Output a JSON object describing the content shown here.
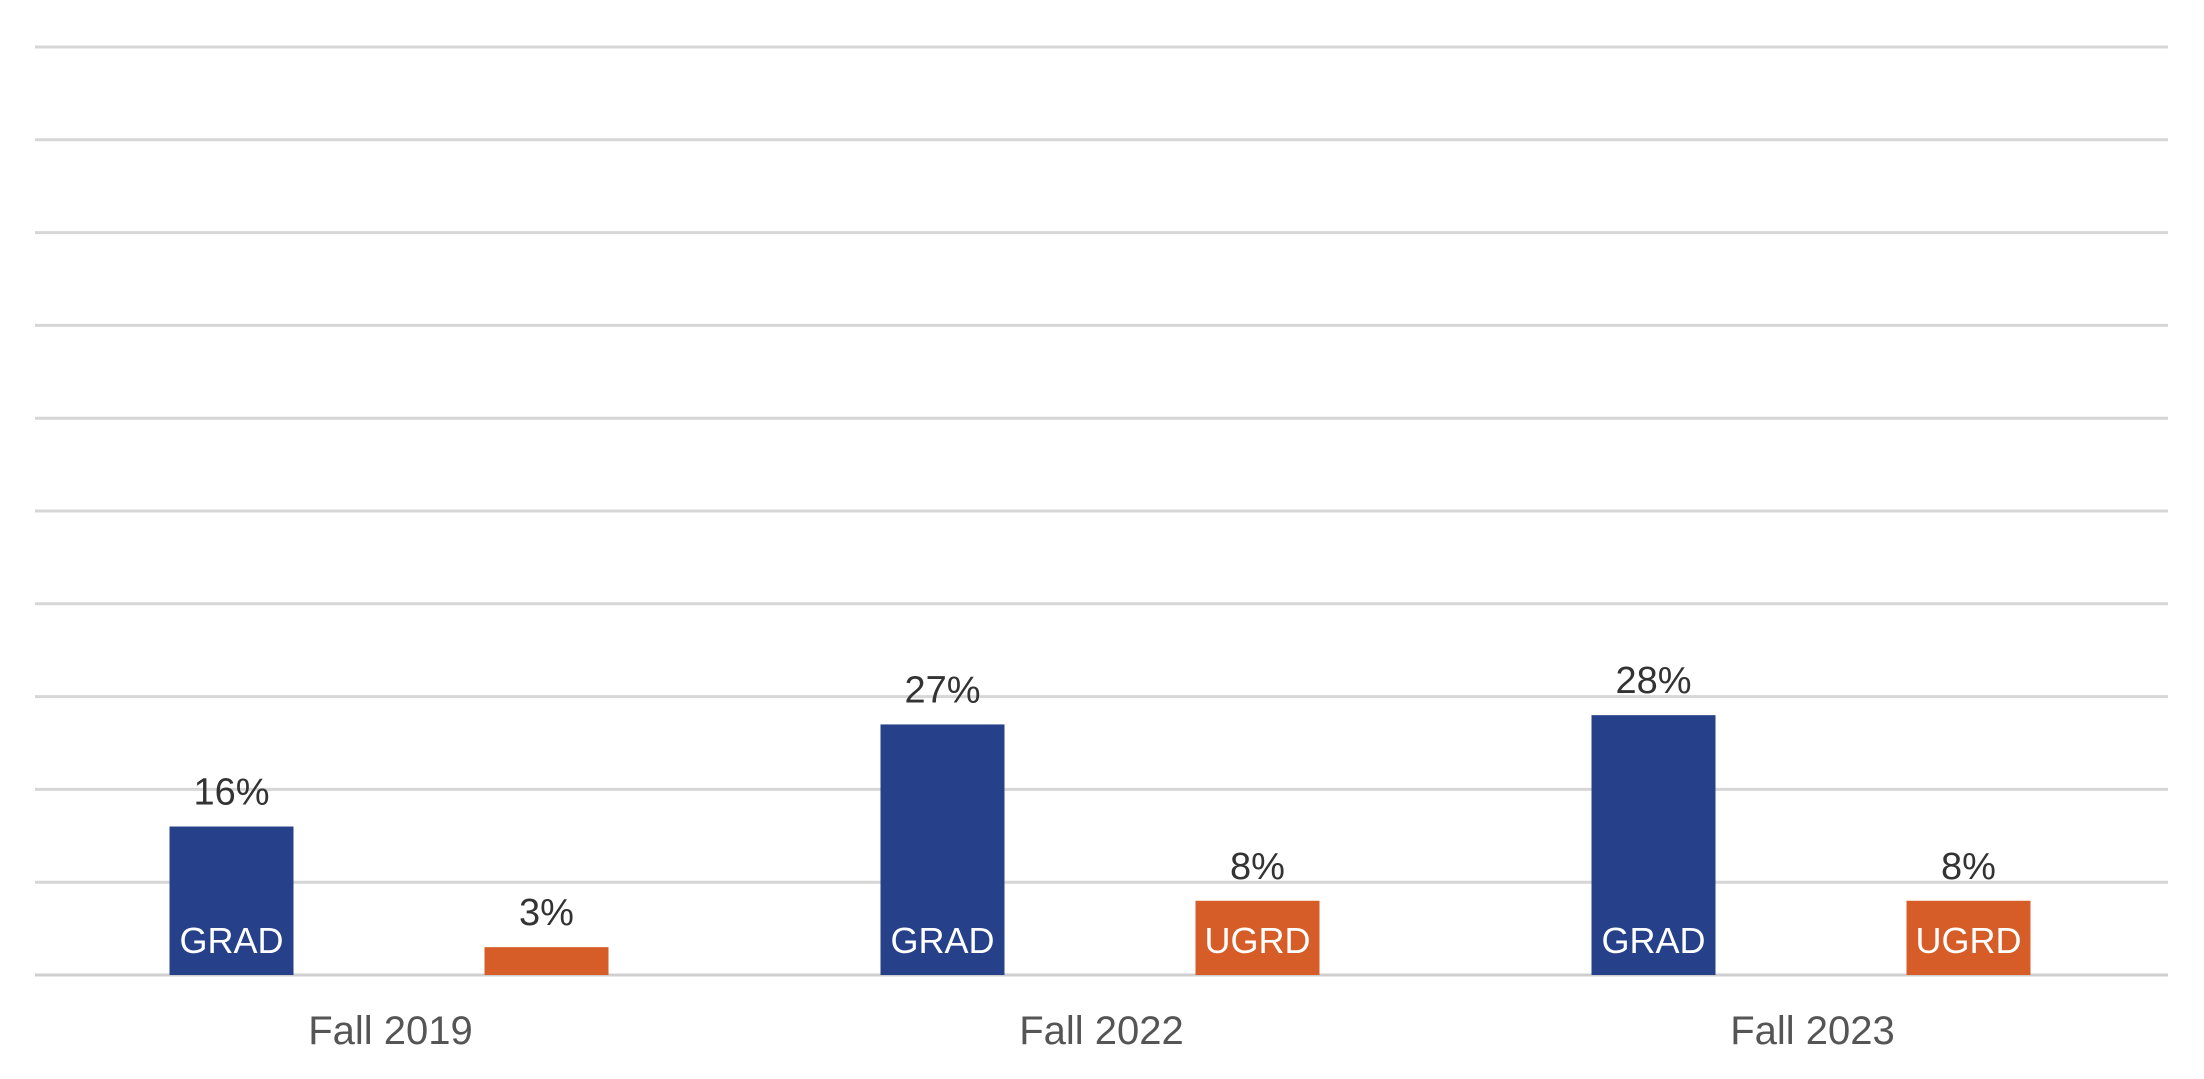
{
  "chart_data": {
    "type": "bar",
    "categories": [
      "Fall 2019",
      "Fall 2022",
      "Fall 2023"
    ],
    "series": [
      {
        "values": [
          16,
          27,
          28
        ],
        "data_labels": [
          "16%",
          "27%",
          "28%"
        ],
        "bar_labels": [
          "GRAD",
          "GRAD",
          "GRAD"
        ],
        "color": "#26418a"
      },
      {
        "values": [
          3,
          8,
          8
        ],
        "data_labels": [
          "3%",
          "8%",
          "8%"
        ],
        "bar_labels": [
          "",
          "UGRD",
          "UGRD"
        ],
        "color": "#d65d27"
      }
    ],
    "ylim": [
      0,
      100
    ],
    "y_grid_step": 10,
    "grid": true,
    "legend": "none"
  }
}
